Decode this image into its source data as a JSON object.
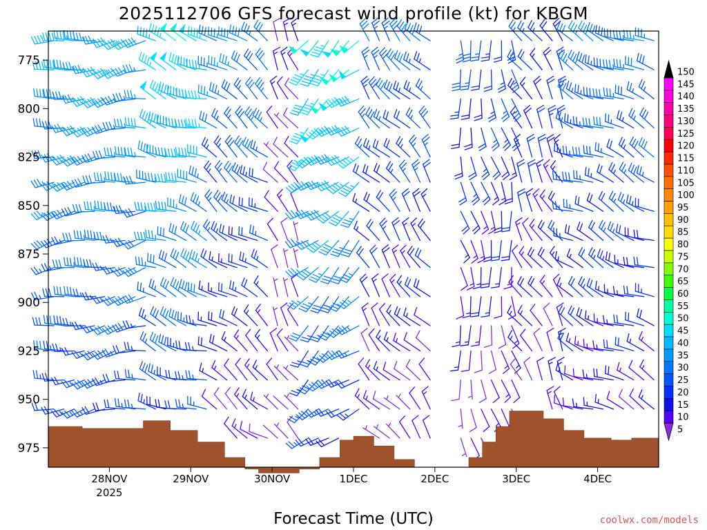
{
  "chart_data": {
    "type": "wind-barb-profile",
    "title": "2025112706 GFS forecast wind profile (kt) for KBGM",
    "xlabel": "Forecast Time (UTC)",
    "ylabel": "",
    "y_axis": {
      "unit": "hPa",
      "range": [
        985,
        760
      ],
      "ticks": [
        775,
        800,
        825,
        850,
        875,
        900,
        925,
        950,
        975
      ]
    },
    "x_axis": {
      "unit": "forecast hour",
      "range": [
        0,
        180
      ],
      "ticks": [
        {
          "label": "28NOV",
          "sublabel": "2025",
          "hour": 18
        },
        {
          "label": "29NOV",
          "sublabel": "",
          "hour": 42
        },
        {
          "label": "30NOV",
          "sublabel": "",
          "hour": 66
        },
        {
          "label": "1DEC",
          "sublabel": "",
          "hour": 90
        },
        {
          "label": "2DEC",
          "sublabel": "",
          "hour": 114
        },
        {
          "label": "3DEC",
          "sublabel": "",
          "hour": 138
        },
        {
          "label": "4DEC",
          "sublabel": "",
          "hour": 162
        }
      ]
    },
    "barb_levels_hpa": [
      765,
      780,
      795,
      810,
      825,
      838,
      853,
      868,
      882,
      897,
      912,
      925,
      940,
      955,
      970
    ],
    "barb_times_hr": [
      0,
      3,
      6,
      9,
      12,
      15,
      18,
      21,
      24,
      27,
      30,
      33,
      36,
      39,
      42,
      45,
      48,
      51,
      54,
      57,
      60,
      63,
      66,
      69,
      72,
      75,
      78,
      81,
      84,
      87,
      90,
      93,
      96,
      99,
      102,
      105,
      108,
      111,
      114,
      117,
      120,
      123,
      126,
      129,
      132,
      135,
      138,
      141,
      144,
      147,
      150,
      153,
      156,
      159,
      162,
      165,
      168,
      171,
      174,
      177
    ],
    "wind_regimes": [
      {
        "t0": 0,
        "t1": 28,
        "dir": 260,
        "spd_top": 40,
        "spd_bot": 22
      },
      {
        "t0": 28,
        "t1": 48,
        "dir": 290,
        "spd_top": 48,
        "spd_bot": 20
      },
      {
        "t0": 48,
        "t1": 64,
        "dir": 305,
        "spd_top": 35,
        "spd_bot": 10
      },
      {
        "t0": 64,
        "t1": 74,
        "dir": 330,
        "spd_top": 12,
        "spd_bot": 6
      },
      {
        "t0": 74,
        "t1": 92,
        "dir": 230,
        "spd_top": 50,
        "spd_bot": 22
      },
      {
        "t0": 92,
        "t1": 112,
        "dir": 320,
        "spd_top": 30,
        "spd_bot": 8
      },
      {
        "t0": 112,
        "t1": 120,
        "dir": 0,
        "spd_top": 0,
        "spd_bot": 0
      },
      {
        "t0": 120,
        "t1": 138,
        "dir": 170,
        "spd_top": 25,
        "spd_bot": 8
      },
      {
        "t0": 138,
        "t1": 152,
        "dir": 330,
        "spd_top": 22,
        "spd_bot": 10
      },
      {
        "t0": 152,
        "t1": 180,
        "dir": 295,
        "spd_top": 32,
        "spd_bot": 12
      }
    ],
    "terrain_surface_hpa": [
      {
        "hour": 0,
        "p": 964
      },
      {
        "hour": 10,
        "p": 965
      },
      {
        "hour": 20,
        "p": 965
      },
      {
        "hour": 28,
        "p": 961
      },
      {
        "hour": 36,
        "p": 966
      },
      {
        "hour": 44,
        "p": 972
      },
      {
        "hour": 52,
        "p": 980
      },
      {
        "hour": 58,
        "p": 986
      },
      {
        "hour": 62,
        "p": 988
      },
      {
        "hour": 68,
        "p": 988
      },
      {
        "hour": 74,
        "p": 986
      },
      {
        "hour": 80,
        "p": 980
      },
      {
        "hour": 86,
        "p": 971
      },
      {
        "hour": 90,
        "p": 969
      },
      {
        "hour": 96,
        "p": 974
      },
      {
        "hour": 102,
        "p": 981
      },
      {
        "hour": 108,
        "p": 985
      },
      {
        "hour": 114,
        "p": 985
      },
      {
        "hour": 120,
        "p": 985
      },
      {
        "hour": 124,
        "p": 980
      },
      {
        "hour": 128,
        "p": 972
      },
      {
        "hour": 132,
        "p": 964
      },
      {
        "hour": 136,
        "p": 956
      },
      {
        "hour": 140,
        "p": 956
      },
      {
        "hour": 146,
        "p": 960
      },
      {
        "hour": 152,
        "p": 966
      },
      {
        "hour": 158,
        "p": 970
      },
      {
        "hour": 166,
        "p": 971
      },
      {
        "hour": 172,
        "p": 970
      },
      {
        "hour": 180,
        "p": 968
      }
    ],
    "terrain_color": "#a0522d",
    "colorbar": {
      "unit": "kt",
      "labels": [
        "150",
        "145",
        "140",
        "135",
        "130",
        "125",
        "120",
        "115",
        "110",
        "105",
        "100",
        "95",
        "90",
        "85",
        "80",
        "75",
        "70",
        "65",
        "60",
        "55",
        "50",
        "45",
        "40",
        "35",
        "30",
        "25",
        "20",
        "15",
        "10",
        "5"
      ],
      "colors": [
        "#000000",
        "#ff00ff",
        "#ff00dd",
        "#ff00aa",
        "#ff0080",
        "#ff0055",
        "#ff0000",
        "#ff2800",
        "#ff5000",
        "#ff7000",
        "#ff8a00",
        "#ffa000",
        "#ffc000",
        "#ffdd00",
        "#ffff00",
        "#ccff00",
        "#80ff00",
        "#40ff00",
        "#00ff40",
        "#00ffa0",
        "#00ffd0",
        "#00ddff",
        "#00bbff",
        "#0099ff",
        "#0077ff",
        "#0055ff",
        "#0033ff",
        "#1010ee",
        "#5500ff",
        "#8a2be2"
      ]
    },
    "credit": "coolwx.com/models"
  }
}
